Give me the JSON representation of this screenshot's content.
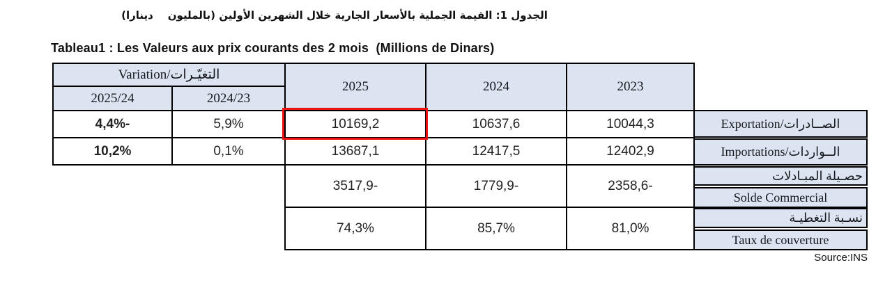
{
  "page": {
    "title_ar": "الجدول 1: القيمة الجملية بالأسعار الجارية خلال الشهرين الأولين (بالمليون    دينارا)",
    "title_fr": "Tableau1 : Les Valeurs aux prix courants des 2 mois  (Millions de Dinars)",
    "source": "Source:INS",
    "colors": {
      "header_bg": "#dbe4f0",
      "border": "#000000",
      "highlight_red": "#ee1111"
    }
  },
  "table": {
    "headers": {
      "variation": "Variation/التغيّـرات",
      "variation_sub": [
        "2025/24",
        "2024/23"
      ],
      "years": [
        "2025",
        "2024",
        "2023"
      ]
    },
    "rows": {
      "exportation": {
        "var_2025_24": "4,4%-",
        "var_2024_23": "5,9%",
        "y2025": "10169,2",
        "y2024": "10637,6",
        "y2023": "10044,3",
        "label": "Exportation/الصــادرات",
        "highlighted_cell": "y2025"
      },
      "importations": {
        "var_2025_24": "10,2%",
        "var_2024_23": "0,1%",
        "y2025": "13687,1",
        "y2024": "12417,5",
        "y2023": "12402,9",
        "label": "Importations/الــواردات"
      },
      "solde": {
        "y2025": "3517,9-",
        "y2024": "1779,9-",
        "y2023": "2358,6-",
        "label_ar": "حصـيلة المبـادلات",
        "label_fr": "Solde Commercial"
      },
      "taux": {
        "y2025": "74,3%",
        "y2024": "85,7%",
        "y2023": "81,0%",
        "label_ar": "نسـبة التغطيـة",
        "label_fr": "Taux de couverture"
      }
    }
  }
}
